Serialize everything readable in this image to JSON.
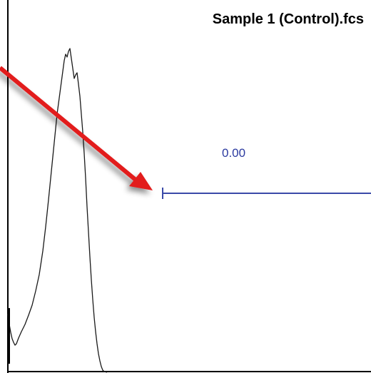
{
  "plot": {
    "title": "Sample 1 (Control).fcs",
    "gate_value": "0.00"
  },
  "colors": {
    "histogram_line": "#1a1a1a",
    "gate_line": "#3a4aa8",
    "gate_label": "#2b3aa0",
    "pointer_arrow": "#e21b1b",
    "axis_line": "#000000"
  },
  "icons": {
    "pointer": "red-pointer-arrow-icon"
  }
}
